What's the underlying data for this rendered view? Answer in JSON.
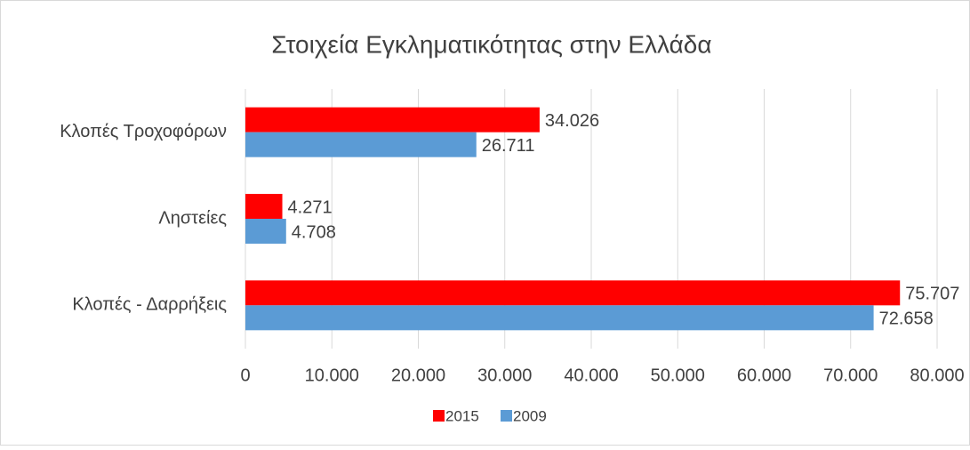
{
  "chart_data": {
    "type": "barh",
    "title": "Στοιχεία Εγκληματικότητας στην Ελλάδα",
    "categories": [
      "Κλοπές Τροχοφόρων",
      "Ληστείες",
      "Κλοπές - Δαρρήξεις"
    ],
    "series": [
      {
        "name": "2015",
        "color": "#ff0000",
        "values": [
          34026,
          4271,
          75707
        ],
        "value_labels": [
          "34.026",
          "4.271",
          "75.707"
        ]
      },
      {
        "name": "2009",
        "color": "#5b9bd5",
        "values": [
          26711,
          4708,
          72658
        ],
        "value_labels": [
          "26.711",
          "4.708",
          "72.658"
        ]
      }
    ],
    "xlim": [
      0,
      80000
    ],
    "xticks": [
      0,
      {
        "value": 10000,
        "label": "10.000"
      },
      {
        "value": 20000,
        "label": "20.000"
      },
      {
        "value": 30000,
        "label": "30.000"
      },
      {
        "value": 40000,
        "label": "40.000"
      },
      {
        "value": 50000,
        "label": "50.000"
      },
      {
        "value": 60000,
        "label": "60.000"
      },
      {
        "value": 70000,
        "label": "70.000"
      },
      {
        "value": 80000,
        "label": "80.000"
      }
    ],
    "grid": true,
    "legend": "bottom"
  }
}
